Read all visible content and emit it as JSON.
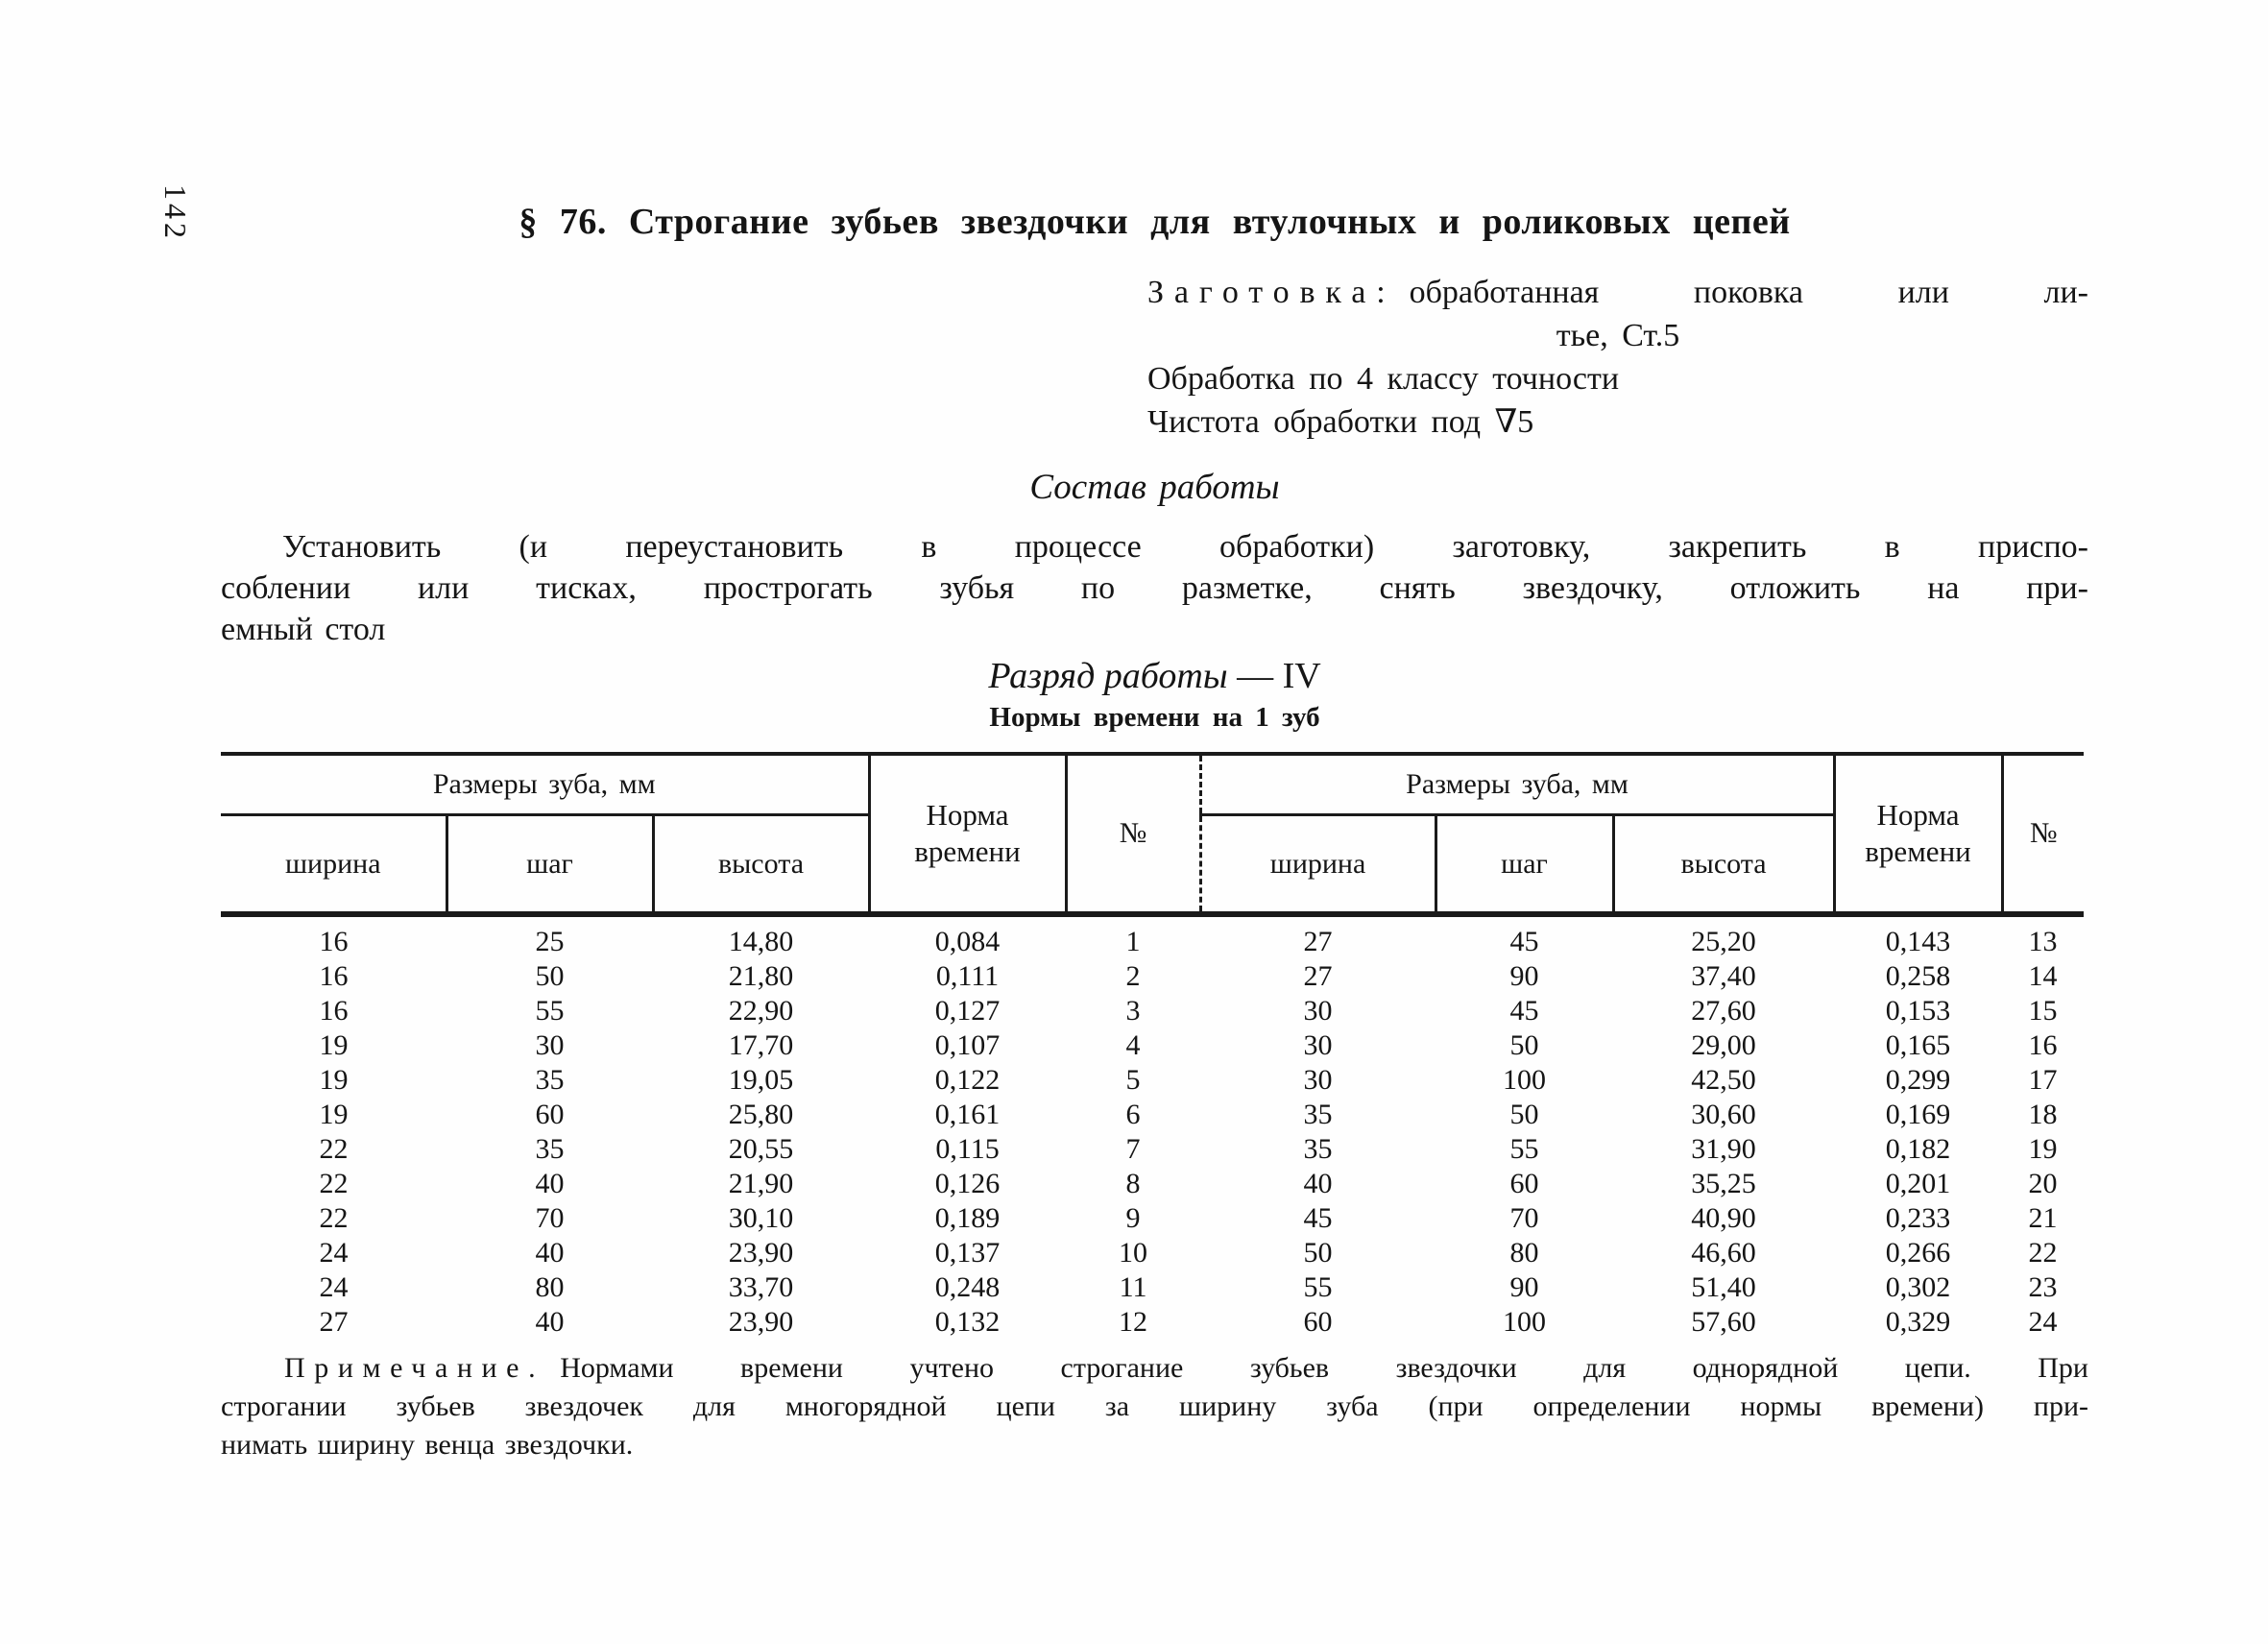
{
  "page_number": "142",
  "title": "§ 76. Строгание зубьев звездочки для втулочных и роликовых цепей",
  "blank": {
    "label": "Заготовка:",
    "line1_rest": "обработанная поковка или ли-",
    "line2": "тье, Ст.5",
    "line3": "Обработка по 4 классу точности",
    "line4": "Чистота обработки под ∇5"
  },
  "composition": {
    "heading": "Состав работы",
    "lines": [
      "Установить (и переустановить в процессе обработки) заготовку, закрепить в приспо-",
      "соблении или тисках, прострогать зубья по разметке, снять звездочку, отложить на при-",
      "емный стол"
    ]
  },
  "grade": {
    "label": "Разряд работы",
    "dash": "—",
    "value": "IV"
  },
  "table": {
    "caption": "Нормы времени на 1 зуб",
    "group_header": "Размеры зуба, мм",
    "col_width": "ширина",
    "col_step": "шаг",
    "col_height": "высота",
    "col_norm": "Норма времени",
    "col_num": "№",
    "rows_left": [
      [
        "16",
        "25",
        "14,80",
        "0,084",
        "1"
      ],
      [
        "16",
        "50",
        "21,80",
        "0,111",
        "2"
      ],
      [
        "16",
        "55",
        "22,90",
        "0,127",
        "3"
      ],
      [
        "19",
        "30",
        "17,70",
        "0,107",
        "4"
      ],
      [
        "19",
        "35",
        "19,05",
        "0,122",
        "5"
      ],
      [
        "19",
        "60",
        "25,80",
        "0,161",
        "6"
      ],
      [
        "22",
        "35",
        "20,55",
        "0,115",
        "7"
      ],
      [
        "22",
        "40",
        "21,90",
        "0,126",
        "8"
      ],
      [
        "22",
        "70",
        "30,10",
        "0,189",
        "9"
      ],
      [
        "24",
        "40",
        "23,90",
        "0,137",
        "10"
      ],
      [
        "24",
        "80",
        "33,70",
        "0,248",
        "11"
      ],
      [
        "27",
        "40",
        "23,90",
        "0,132",
        "12"
      ]
    ],
    "rows_right": [
      [
        "27",
        "45",
        "25,20",
        "0,143",
        "13"
      ],
      [
        "27",
        "90",
        "37,40",
        "0,258",
        "14"
      ],
      [
        "30",
        "45",
        "27,60",
        "0,153",
        "15"
      ],
      [
        "30",
        "50",
        "29,00",
        "0,165",
        "16"
      ],
      [
        "30",
        "100",
        "42,50",
        "0,299",
        "17"
      ],
      [
        "35",
        "50",
        "30,60",
        "0,169",
        "18"
      ],
      [
        "35",
        "55",
        "31,90",
        "0,182",
        "19"
      ],
      [
        "40",
        "60",
        "35,25",
        "0,201",
        "20"
      ],
      [
        "45",
        "70",
        "40,90",
        "0,233",
        "21"
      ],
      [
        "50",
        "80",
        "46,60",
        "0,266",
        "22"
      ],
      [
        "55",
        "90",
        "51,40",
        "0,302",
        "23"
      ],
      [
        "60",
        "100",
        "57,60",
        "0,329",
        "24"
      ]
    ]
  },
  "note": {
    "label": "Примечание.",
    "line1_rest": "Нормами времени учтено строгание зубьев звездочки для однорядной цепи. При",
    "line2": "строгании зубьев звездочек для многорядной цепи за ширину зуба (при определении нормы времени) при-",
    "line3": "нимать ширину венца звездочки."
  }
}
